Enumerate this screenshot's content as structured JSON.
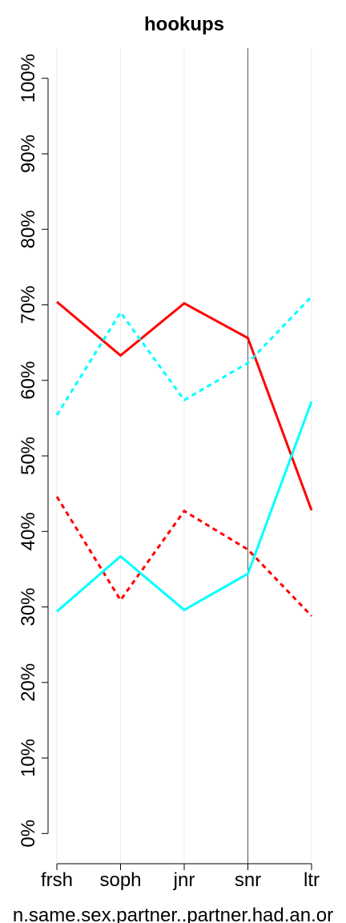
{
  "chart_data": {
    "type": "line",
    "title": "hookups",
    "x_label": "n.same.sex.partner..partner.had.an.or",
    "categories": [
      "frsh",
      "soph",
      "jnr",
      "snr",
      "ltr"
    ],
    "series": [
      {
        "color": "#ff0000",
        "dash": false,
        "values": [
          70.4,
          63.3,
          70.2,
          65.6,
          42.8
        ]
      },
      {
        "color": "#00ffff",
        "dash": true,
        "values": [
          55.4,
          69.0,
          57.4,
          62.3,
          71.1
        ]
      },
      {
        "color": "#ff0000",
        "dash": true,
        "values": [
          44.6,
          30.9,
          42.7,
          37.6,
          28.8
        ]
      },
      {
        "color": "#00ffff",
        "dash": false,
        "values": [
          29.4,
          36.7,
          29.6,
          34.4,
          57.2
        ]
      }
    ],
    "ylim": [
      -4,
      104
    ],
    "yticks": [
      {
        "value": 0,
        "label": "0%"
      },
      {
        "value": 10,
        "label": "10%"
      },
      {
        "value": 20,
        "label": "20%"
      },
      {
        "value": 30,
        "label": "30%"
      },
      {
        "value": 40,
        "label": "40%"
      },
      {
        "value": 50,
        "label": "50%"
      },
      {
        "value": 60,
        "label": "60%"
      },
      {
        "value": 70,
        "label": "70%"
      },
      {
        "value": 80,
        "label": "80%"
      },
      {
        "value": 90,
        "label": "90%"
      },
      {
        "value": 100,
        "label": "100%"
      }
    ],
    "grid": true,
    "vline_at": "snr"
  }
}
